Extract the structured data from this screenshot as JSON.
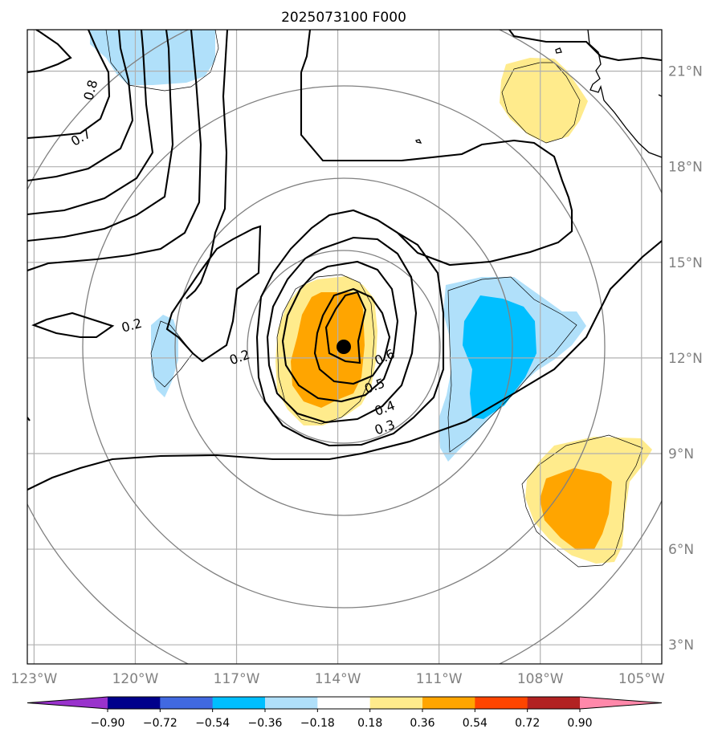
{
  "title": "2025073100 F000",
  "map": {
    "lon_range": [
      -123.2,
      -104.4
    ],
    "lat_range": [
      2.4,
      22.3
    ],
    "lon_ticks": [
      {
        "value": -123,
        "label": "123°W"
      },
      {
        "value": -120,
        "label": "120°W"
      },
      {
        "value": -117,
        "label": "117°W"
      },
      {
        "value": -114,
        "label": "114°W"
      },
      {
        "value": -111,
        "label": "111°W"
      },
      {
        "value": -108,
        "label": "108°W"
      },
      {
        "value": -105,
        "label": "105°W"
      }
    ],
    "lat_ticks": [
      {
        "value": 3,
        "label": "3°N"
      },
      {
        "value": 6,
        "label": "6°N"
      },
      {
        "value": 9,
        "label": "9°N"
      },
      {
        "value": 12,
        "label": "12°N"
      },
      {
        "value": 15,
        "label": "15°N"
      },
      {
        "value": 18,
        "label": "18°N"
      },
      {
        "value": 21,
        "label": "21°N"
      }
    ],
    "gridlines": true,
    "center": {
      "lon": -113.3,
      "lat": 12.3
    },
    "contour_labels": [
      {
        "text": "0.8",
        "lon": -121.3,
        "lat": 20.4
      },
      {
        "text": "0.7",
        "lon": -121.6,
        "lat": 18.9
      },
      {
        "text": "0.2",
        "lon": -120.1,
        "lat": 13.0
      },
      {
        "text": "0.2",
        "lon": -116.9,
        "lat": 12.0
      },
      {
        "text": "0.6",
        "lon": -112.6,
        "lat": 12.0
      },
      {
        "text": "0.5",
        "lon": -112.9,
        "lat": 11.1
      },
      {
        "text": "0.4",
        "lon": -112.6,
        "lat": 10.4
      },
      {
        "text": "0.3",
        "lon": -112.6,
        "lat": 9.8
      }
    ]
  },
  "colorbar": {
    "tick_labels": [
      "−0.90",
      "−0.72",
      "−0.54",
      "−0.36",
      "−0.18",
      "0.18",
      "0.36",
      "0.54",
      "0.72",
      "0.90"
    ],
    "colors": [
      "#9932cc",
      "#00008b",
      "#4169e1",
      "#00bfff",
      "#b0e0fa",
      "#ffffff",
      "#ffeb8c",
      "#ffa500",
      "#ff4500",
      "#b22222",
      "#ff88aa"
    ]
  },
  "colors": {
    "light_blue": "#b0e0fa",
    "blue": "#00bfff",
    "light_yellow": "#ffeb8c",
    "orange": "#ffa500",
    "contour": "#000000",
    "range_ring": "#808080",
    "grid": "#b0b0b0"
  }
}
